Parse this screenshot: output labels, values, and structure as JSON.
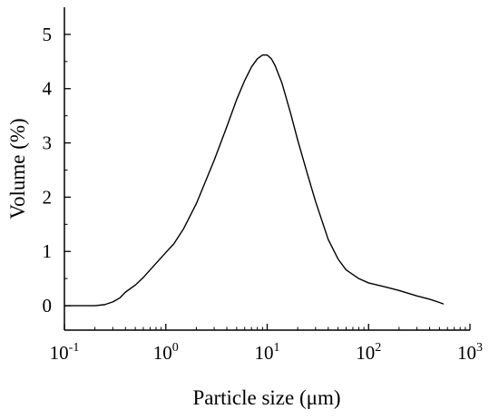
{
  "chart_data": {
    "type": "line",
    "title": "",
    "xlabel": "Particle size (μm)",
    "ylabel": "Volume (%)",
    "x_scale": "log",
    "xlim": [
      0.1,
      1000
    ],
    "ylim": [
      -0.45,
      5.5
    ],
    "x_ticks": [
      {
        "base": "10",
        "exp": "-1",
        "value": 0.1
      },
      {
        "base": "10",
        "exp": "0",
        "value": 1
      },
      {
        "base": "10",
        "exp": "1",
        "value": 10
      },
      {
        "base": "10",
        "exp": "2",
        "value": 100
      },
      {
        "base": "10",
        "exp": "3",
        "value": 1000
      }
    ],
    "y_ticks": [
      "0",
      "1",
      "2",
      "3",
      "4",
      "5"
    ],
    "grid": false,
    "line_color": "#000000",
    "series": [
      {
        "x": [
          0.1,
          0.2,
          0.25,
          0.3,
          0.35,
          0.4,
          0.5,
          0.6,
          0.8,
          1.0,
          1.2,
          1.5,
          2,
          3,
          4,
          5,
          6,
          7,
          8,
          9,
          10,
          11,
          12,
          14,
          17,
          20,
          25,
          30,
          40,
          50,
          60,
          80,
          100,
          150,
          200,
          300,
          400,
          500,
          550
        ],
        "y": [
          0.0,
          0.0,
          0.02,
          0.07,
          0.14,
          0.25,
          0.38,
          0.52,
          0.78,
          0.98,
          1.14,
          1.42,
          1.88,
          2.68,
          3.3,
          3.8,
          4.15,
          4.4,
          4.55,
          4.62,
          4.62,
          4.55,
          4.42,
          4.1,
          3.55,
          3.05,
          2.42,
          1.92,
          1.22,
          0.86,
          0.66,
          0.5,
          0.42,
          0.34,
          0.28,
          0.18,
          0.12,
          0.06,
          0.03
        ]
      }
    ]
  }
}
